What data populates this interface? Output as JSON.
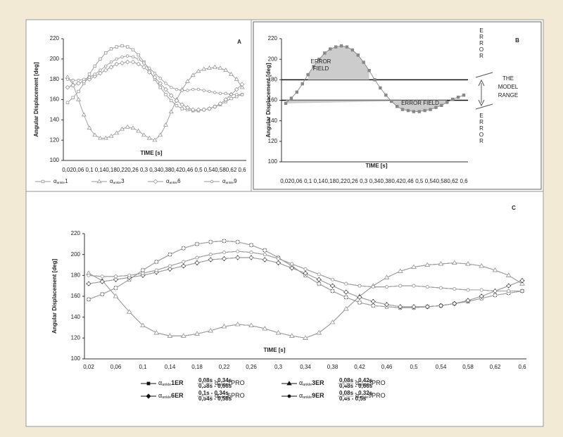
{
  "chart_data": [
    {
      "type": "line",
      "panel": "A",
      "y_label": "Angular Displacement [deg]",
      "x_label": "TIME [s]",
      "categories": [
        "0,02",
        null,
        "0,06",
        null,
        "0,1",
        null,
        "0,14",
        null,
        "0,18",
        null,
        "0,22",
        null,
        "0,26",
        null,
        "0,3",
        null,
        "0,34",
        null,
        "0,38",
        null,
        "0,42",
        null,
        "0,46",
        null,
        "0,5",
        null,
        "0,54",
        null,
        "0,58",
        null,
        "0,62",
        null,
        "0,6"
      ],
      "ylim": [
        100,
        220
      ],
      "yticks": [
        100,
        120,
        140,
        160,
        180,
        200,
        220
      ],
      "series": [
        {
          "prefix": "α",
          "sub": "ankle",
          "name": "1",
          "color": "#999",
          "marker": "square",
          "filled": false,
          "values": [
            157,
            162,
            168,
            176,
            185,
            193,
            200,
            206,
            210,
            212,
            213,
            212,
            209,
            204,
            197,
            189,
            180,
            172,
            165,
            159,
            154,
            151,
            150,
            149,
            149,
            150,
            151,
            153,
            155,
            158,
            161,
            163,
            165
          ]
        },
        {
          "prefix": "α",
          "sub": "ankle",
          "name": "3",
          "color": "#999",
          "marker": "triangle",
          "filled": false,
          "values": [
            182,
            175,
            160,
            145,
            132,
            125,
            122,
            122,
            124,
            127,
            131,
            133,
            132,
            129,
            125,
            122,
            120,
            125,
            135,
            148,
            160,
            170,
            178,
            184,
            188,
            190,
            191,
            192,
            191,
            189,
            185,
            180,
            172
          ]
        },
        {
          "prefix": "α",
          "sub": "ankle",
          "name": "6",
          "color": "#999",
          "marker": "diamond",
          "filled": false,
          "values": [
            172,
            174,
            176,
            178,
            180,
            183,
            186,
            189,
            192,
            195,
            196,
            197,
            197,
            195,
            192,
            187,
            182,
            176,
            170,
            164,
            159,
            155,
            152,
            150,
            150,
            150,
            151,
            153,
            156,
            160,
            165,
            170,
            175
          ]
        },
        {
          "prefix": "α",
          "sub": "ankle",
          "name": "9",
          "color": "#999",
          "marker": "circle",
          "filled": false,
          "values": [
            180,
            179,
            179,
            180,
            182,
            185,
            189,
            193,
            197,
            200,
            202,
            203,
            202,
            200,
            196,
            191,
            186,
            181,
            176,
            172,
            170,
            169,
            169,
            170,
            170,
            169,
            168,
            167,
            166,
            166,
            165,
            165,
            165
          ]
        }
      ]
    },
    {
      "type": "line",
      "panel": "B",
      "y_label": "Angular Displacement [deg]",
      "x_label": "TIME [s]",
      "categories": [
        "0,02",
        null,
        "0,06",
        null,
        "0,1",
        null,
        "0,14",
        null,
        "0,18",
        null,
        "0,22",
        null,
        "0,26",
        null,
        "0,3",
        null,
        "0,34",
        null,
        "0,38",
        null,
        "0,42",
        null,
        "0,46",
        null,
        "0,5",
        null,
        "0,54",
        null,
        "0,58",
        null,
        "0,62",
        null,
        "0,6"
      ],
      "ylim": [
        100,
        220
      ],
      "yticks": [
        100,
        120,
        140,
        160,
        180,
        200,
        220
      ],
      "model_range_lines": [
        180,
        160
      ],
      "annotations": [
        [
          "ERROR",
          "FIELD"
        ],
        [
          "ERROR FIELD"
        ],
        [
          "E",
          "R",
          "R",
          "O",
          "R"
        ],
        [
          "E",
          "R",
          "R",
          "O",
          "R"
        ],
        [
          "THE",
          "MODEL",
          "RANGE"
        ]
      ],
      "series": [
        {
          "color": "#888",
          "marker": "square",
          "filled": true,
          "values": [
            157,
            162,
            168,
            176,
            185,
            193,
            200,
            206,
            210,
            212,
            213,
            212,
            209,
            204,
            197,
            189,
            180,
            172,
            165,
            159,
            154,
            151,
            150,
            149,
            149,
            150,
            151,
            153,
            155,
            158,
            161,
            163,
            165
          ]
        }
      ]
    },
    {
      "type": "line",
      "panel": "C",
      "y_label": "Angular Displacement [deg]",
      "x_label": "TIME [s]",
      "categories": [
        "0,02",
        null,
        "0,06",
        null,
        "0,1",
        null,
        "0,14",
        null,
        "0,18",
        null,
        "0,22",
        null,
        "0,26",
        null,
        "0,3",
        null,
        "0,34",
        null,
        "0,38",
        null,
        "0,42",
        null,
        "0,46",
        null,
        "0,5",
        null,
        "0,54",
        null,
        "0,58",
        null,
        "0,62",
        null,
        "0,6"
      ],
      "ylim": [
        100,
        220
      ],
      "yticks": [
        100,
        120,
        140,
        160,
        180,
        200,
        220
      ],
      "series": [
        {
          "prefix": "α",
          "sub": "ankle",
          "name": "1ER",
          "interval": [
            "0,08s - 0,34s",
            "0,38s - 0,66s"
          ],
          "color": "#111",
          "marker": "square",
          "filled": true,
          "values": [
            157,
            162,
            168,
            176,
            185,
            193,
            200,
            206,
            210,
            212,
            213,
            212,
            209,
            204,
            197,
            189,
            180,
            172,
            165,
            159,
            154,
            151,
            150,
            149,
            149,
            150,
            151,
            153,
            155,
            158,
            161,
            163,
            165
          ]
        },
        {
          "prefix": "α",
          "sub": "ankle",
          "name": "1PRO",
          "color": "#aaa",
          "marker": "diamond",
          "filled": false,
          "values": [
            157,
            162,
            168,
            176,
            185,
            193,
            200,
            206,
            210,
            212,
            213,
            212,
            209,
            204,
            197,
            189,
            180,
            172,
            165,
            159,
            154,
            151,
            150,
            149,
            149,
            150,
            151,
            153,
            155,
            158,
            161,
            163,
            165
          ]
        },
        {
          "prefix": "α",
          "sub": "ankle",
          "name": "3ER",
          "interval": [
            "0,08s - 0,42s",
            "0,48s - 0,66s"
          ],
          "color": "#111",
          "marker": "triangle",
          "filled": true,
          "values": [
            182,
            175,
            160,
            145,
            132,
            125,
            122,
            122,
            124,
            127,
            131,
            133,
            132,
            129,
            125,
            122,
            120,
            125,
            135,
            148,
            160,
            170,
            178,
            184,
            188,
            190,
            191,
            192,
            191,
            189,
            185,
            180,
            172
          ]
        },
        {
          "prefix": "α",
          "sub": "ankle",
          "name": "3PRO",
          "color": "#aaa",
          "marker": "triangle",
          "filled": false,
          "values": [
            182,
            175,
            160,
            145,
            132,
            125,
            122,
            122,
            124,
            127,
            131,
            133,
            132,
            129,
            125,
            122,
            120,
            125,
            135,
            148,
            160,
            170,
            178,
            184,
            188,
            190,
            191,
            192,
            191,
            189,
            185,
            180,
            172
          ]
        },
        {
          "prefix": "α",
          "sub": "ankle",
          "name": "6ER",
          "interval": [
            "0,1s - 0,34s",
            "0,54s - 0,58s"
          ],
          "color": "#111",
          "marker": "diamond",
          "filled": true,
          "values": [
            172,
            174,
            176,
            178,
            180,
            183,
            186,
            189,
            192,
            195,
            196,
            197,
            197,
            195,
            192,
            187,
            182,
            176,
            170,
            164,
            159,
            155,
            152,
            150,
            150,
            150,
            151,
            153,
            156,
            160,
            165,
            170,
            175
          ]
        },
        {
          "prefix": "α",
          "sub": "ankle",
          "name": "6PRO",
          "color": "#aaa",
          "marker": "circle",
          "filled": false,
          "values": [
            172,
            174,
            176,
            178,
            180,
            183,
            186,
            189,
            192,
            195,
            196,
            197,
            197,
            195,
            192,
            187,
            182,
            176,
            170,
            164,
            159,
            155,
            152,
            150,
            150,
            150,
            151,
            153,
            156,
            160,
            165,
            170,
            175
          ]
        },
        {
          "prefix": "α",
          "sub": "ankle",
          "name": "9ER",
          "interval": [
            "0,08s - 0,32s",
            "0,4s - 0,5s"
          ],
          "color": "#111",
          "marker": "circle",
          "filled": true,
          "values": [
            180,
            179,
            179,
            180,
            182,
            185,
            189,
            193,
            197,
            200,
            202,
            203,
            202,
            200,
            196,
            191,
            186,
            181,
            176,
            172,
            170,
            169,
            169,
            170,
            170,
            169,
            168,
            167,
            166,
            166,
            165,
            165,
            165
          ]
        },
        {
          "prefix": "α",
          "sub": "ankle",
          "name": "9PRO",
          "color": "#aaa",
          "marker": "circle",
          "filled": false,
          "values": [
            180,
            179,
            179,
            180,
            182,
            185,
            189,
            193,
            197,
            200,
            202,
            203,
            202,
            200,
            196,
            191,
            186,
            181,
            176,
            172,
            170,
            169,
            169,
            170,
            170,
            169,
            168,
            167,
            166,
            166,
            165,
            165,
            165
          ]
        }
      ]
    }
  ]
}
